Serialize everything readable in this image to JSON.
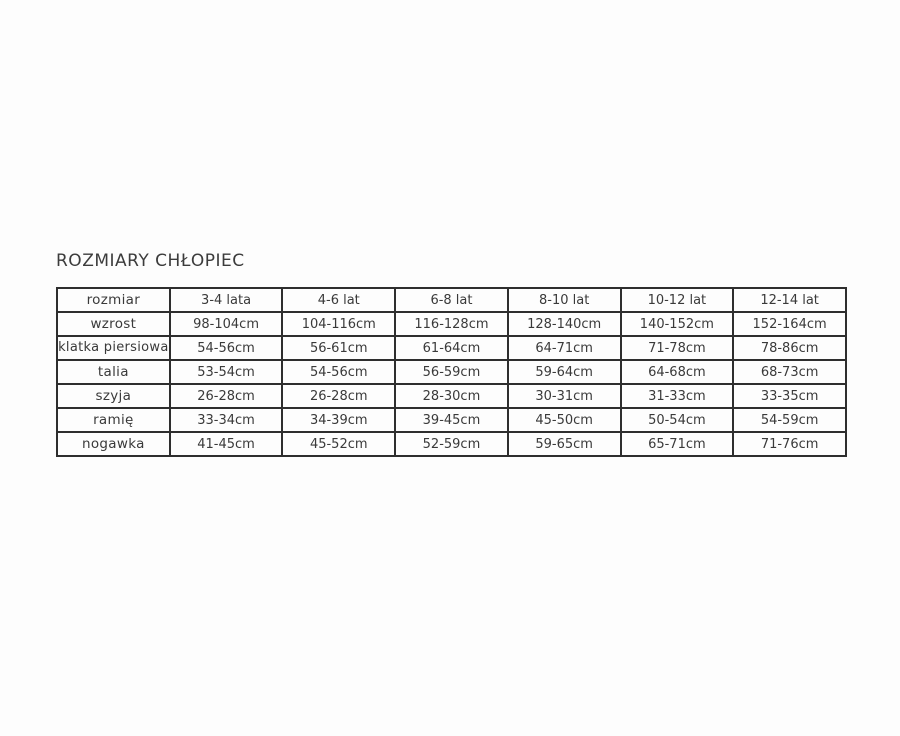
{
  "title": "ROZMIARY CHŁOPIEC",
  "table": {
    "rows": [
      {
        "label": "rozmiar",
        "cells": [
          "3-4 lata",
          "4-6 lat",
          "6-8 lat",
          "8-10 lat",
          "10-12 lat",
          "12-14 lat"
        ]
      },
      {
        "label": "wzrost",
        "cells": [
          "98-104cm",
          "104-116cm",
          "116-128cm",
          "128-140cm",
          "140-152cm",
          "152-164cm"
        ]
      },
      {
        "label": "klatka piersiowa",
        "cells": [
          "54-56cm",
          "56-61cm",
          "61-64cm",
          "64-71cm",
          "71-78cm",
          "78-86cm"
        ]
      },
      {
        "label": "talia",
        "cells": [
          "53-54cm",
          "54-56cm",
          "56-59cm",
          "59-64cm",
          "64-68cm",
          "68-73cm"
        ]
      },
      {
        "label": "szyja",
        "cells": [
          "26-28cm",
          "26-28cm",
          "28-30cm",
          "30-31cm",
          "31-33cm",
          "33-35cm"
        ]
      },
      {
        "label": "ramię",
        "cells": [
          "33-34cm",
          "34-39cm",
          "39-45cm",
          "45-50cm",
          "50-54cm",
          "54-59cm"
        ]
      },
      {
        "label": "nogawka",
        "cells": [
          "41-45cm",
          "45-52cm",
          "52-59cm",
          "59-65cm",
          "65-71cm",
          "71-76cm"
        ]
      }
    ]
  }
}
